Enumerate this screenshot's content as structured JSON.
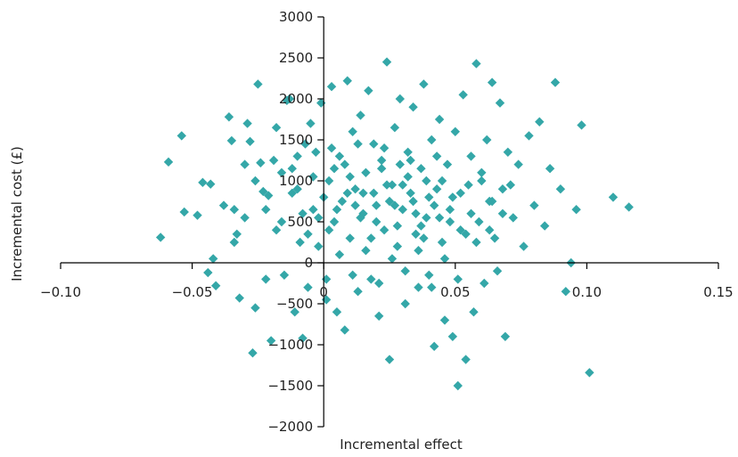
{
  "chart_data": {
    "type": "scatter",
    "xlabel": "Incremental effect",
    "ylabel": "Incremental cost (£)",
    "xlim": [
      -0.1,
      0.15
    ],
    "ylim": [
      -2000,
      3000
    ],
    "x_ticks": [
      -0.1,
      -0.05,
      0,
      0.05,
      0.1,
      0.15
    ],
    "x_tick_labels": [
      "−0.10",
      "−0.05",
      "0",
      "0.05",
      "0.10",
      "0.15"
    ],
    "y_ticks": [
      -2000,
      -1500,
      -1000,
      -500,
      0,
      500,
      1000,
      1500,
      2000,
      2500,
      3000
    ],
    "y_tick_labels": [
      "−2000",
      "−1500",
      "−1000",
      "−500",
      "0",
      "500",
      "1000",
      "1500",
      "2000",
      "2500",
      "3000"
    ],
    "marker": "diamond",
    "grid": false,
    "point_color": "#34A7A8",
    "points": [
      [
        -0.062,
        310
      ],
      [
        -0.059,
        1230
      ],
      [
        -0.054,
        1550
      ],
      [
        -0.053,
        620
      ],
      [
        -0.048,
        580
      ],
      [
        -0.046,
        980
      ],
      [
        -0.044,
        -120
      ],
      [
        -0.043,
        960
      ],
      [
        -0.042,
        50
      ],
      [
        -0.041,
        -280
      ],
      [
        -0.036,
        1780
      ],
      [
        -0.035,
        1490
      ],
      [
        -0.034,
        650
      ],
      [
        -0.033,
        350
      ],
      [
        -0.032,
        -430
      ],
      [
        -0.03,
        1200
      ],
      [
        -0.029,
        1700
      ],
      [
        -0.028,
        1480
      ],
      [
        -0.027,
        -1100
      ],
      [
        -0.026,
        -550
      ],
      [
        -0.025,
        2180
      ],
      [
        -0.024,
        1220
      ],
      [
        -0.023,
        870
      ],
      [
        -0.022,
        -200
      ],
      [
        -0.021,
        820
      ],
      [
        -0.02,
        -950
      ],
      [
        -0.019,
        1250
      ],
      [
        -0.018,
        1650
      ],
      [
        -0.016,
        500
      ],
      [
        -0.015,
        -150
      ],
      [
        -0.014,
        1980
      ],
      [
        -0.013,
        2000
      ],
      [
        -0.012,
        1150
      ],
      [
        -0.011,
        -600
      ],
      [
        -0.01,
        900
      ],
      [
        -0.009,
        250
      ],
      [
        -0.008,
        -920
      ],
      [
        -0.007,
        1450
      ],
      [
        -0.006,
        -300
      ],
      [
        -0.005,
        1700
      ],
      [
        -0.004,
        650
      ],
      [
        -0.003,
        1350
      ],
      [
        -0.002,
        200
      ],
      [
        -0.001,
        1950
      ],
      [
        0.001,
        -450
      ],
      [
        0.002,
        1000
      ],
      [
        0.003,
        2150
      ],
      [
        0.004,
        500
      ],
      [
        0.005,
        -600
      ],
      [
        0.006,
        1300
      ],
      [
        0.007,
        750
      ],
      [
        0.008,
        -820
      ],
      [
        0.009,
        2220
      ],
      [
        0.01,
        300
      ],
      [
        0.011,
        1600
      ],
      [
        0.012,
        900
      ],
      [
        0.013,
        -350
      ],
      [
        0.014,
        1800
      ],
      [
        0.015,
        600
      ],
      [
        0.016,
        1100
      ],
      [
        0.017,
        2100
      ],
      [
        0.018,
        -200
      ],
      [
        0.019,
        1450
      ],
      [
        0.02,
        700
      ],
      [
        0.021,
        -650
      ],
      [
        0.022,
        1250
      ],
      [
        0.023,
        400
      ],
      [
        0.024,
        2450
      ],
      [
        0.025,
        -1180
      ],
      [
        0.026,
        950
      ],
      [
        0.027,
        1650
      ],
      [
        0.028,
        200
      ],
      [
        0.029,
        2000
      ],
      [
        0.03,
        650
      ],
      [
        0.031,
        -500
      ],
      [
        0.032,
        1350
      ],
      [
        0.033,
        850
      ],
      [
        0.034,
        1900
      ],
      [
        0.035,
        350
      ],
      [
        0.036,
        -300
      ],
      [
        0.037,
        1150
      ],
      [
        0.038,
        2180
      ],
      [
        0.039,
        550
      ],
      [
        0.04,
        -150
      ],
      [
        0.041,
        1500
      ],
      [
        0.042,
        -1020
      ],
      [
        0.043,
        900
      ],
      [
        0.044,
        1750
      ],
      [
        0.045,
        250
      ],
      [
        0.046,
        -700
      ],
      [
        0.047,
        1200
      ],
      [
        0.048,
        650
      ],
      [
        0.049,
        -900
      ],
      [
        0.05,
        1600
      ],
      [
        0.051,
        -1500
      ],
      [
        0.052,
        400
      ],
      [
        0.053,
        2050
      ],
      [
        0.054,
        -1180
      ],
      [
        0.055,
        950
      ],
      [
        0.056,
        1300
      ],
      [
        0.057,
        -600
      ],
      [
        0.058,
        2430
      ],
      [
        0.059,
        500
      ],
      [
        0.06,
        1100
      ],
      [
        0.061,
        -250
      ],
      [
        0.062,
        1500
      ],
      [
        0.063,
        750
      ],
      [
        0.064,
        2200
      ],
      [
        0.065,
        300
      ],
      [
        0.066,
        -100
      ],
      [
        0.067,
        1950
      ],
      [
        0.068,
        900
      ],
      [
        0.069,
        -900
      ],
      [
        0.07,
        1350
      ],
      [
        0.072,
        550
      ],
      [
        0.074,
        1200
      ],
      [
        0.076,
        200
      ],
      [
        0.078,
        1550
      ],
      [
        0.08,
        700
      ],
      [
        0.082,
        1720
      ],
      [
        0.084,
        450
      ],
      [
        0.086,
        1150
      ],
      [
        0.088,
        2200
      ],
      [
        0.09,
        900
      ],
      [
        0.092,
        -350
      ],
      [
        0.094,
        0
      ],
      [
        0.096,
        650
      ],
      [
        0.098,
        1680
      ],
      [
        0.101,
        -1340
      ],
      [
        0.11,
        800
      ],
      [
        0.116,
        680
      ],
      [
        0.0,
        800
      ],
      [
        0.005,
        650
      ],
      [
        0.01,
        1050
      ],
      [
        0.015,
        850
      ],
      [
        0.02,
        500
      ],
      [
        0.025,
        750
      ],
      [
        0.03,
        950
      ],
      [
        0.035,
        600
      ],
      [
        0.04,
        800
      ],
      [
        0.045,
        1000
      ],
      [
        0.002,
        400
      ],
      [
        0.008,
        1200
      ],
      [
        0.012,
        700
      ],
      [
        0.018,
        300
      ],
      [
        0.022,
        1150
      ],
      [
        0.028,
        450
      ],
      [
        0.032,
        1050
      ],
      [
        0.038,
        300
      ],
      [
        0.042,
        700
      ],
      [
        0.048,
        500
      ],
      [
        -0.004,
        1050
      ],
      [
        -0.008,
        600
      ],
      [
        -0.012,
        850
      ],
      [
        -0.016,
        1100
      ],
      [
        0.052,
        850
      ],
      [
        0.056,
        600
      ],
      [
        0.06,
        1000
      ],
      [
        0.064,
        750
      ],
      [
        0.003,
        1400
      ],
      [
        0.013,
        1450
      ],
      [
        0.023,
        1400
      ],
      [
        0.033,
        1250
      ],
      [
        0.043,
        1300
      ],
      [
        0.006,
        100
      ],
      [
        0.016,
        150
      ],
      [
        0.026,
        50
      ],
      [
        0.036,
        150
      ],
      [
        0.046,
        50
      ],
      [
        0.001,
        -200
      ],
      [
        0.011,
        -150
      ],
      [
        0.021,
        -250
      ],
      [
        0.031,
        -100
      ],
      [
        0.041,
        -300
      ],
      [
        0.051,
        -200
      ],
      [
        0.058,
        250
      ],
      [
        0.063,
        400
      ],
      [
        0.068,
        600
      ],
      [
        0.071,
        950
      ],
      [
        -0.002,
        550
      ],
      [
        -0.006,
        350
      ],
      [
        -0.01,
        1300
      ],
      [
        -0.018,
        400
      ],
      [
        -0.022,
        650
      ],
      [
        -0.026,
        1000
      ],
      [
        -0.03,
        550
      ],
      [
        -0.034,
        250
      ],
      [
        -0.038,
        700
      ],
      [
        0.014,
        550
      ],
      [
        0.024,
        950
      ],
      [
        0.034,
        750
      ],
      [
        0.044,
        550
      ],
      [
        0.054,
        350
      ],
      [
        0.019,
        850
      ],
      [
        0.029,
        1200
      ],
      [
        0.039,
        1000
      ],
      [
        0.049,
        800
      ],
      [
        0.009,
        850
      ],
      [
        0.004,
        1150
      ],
      [
        0.027,
        700
      ],
      [
        0.037,
        450
      ]
    ]
  }
}
